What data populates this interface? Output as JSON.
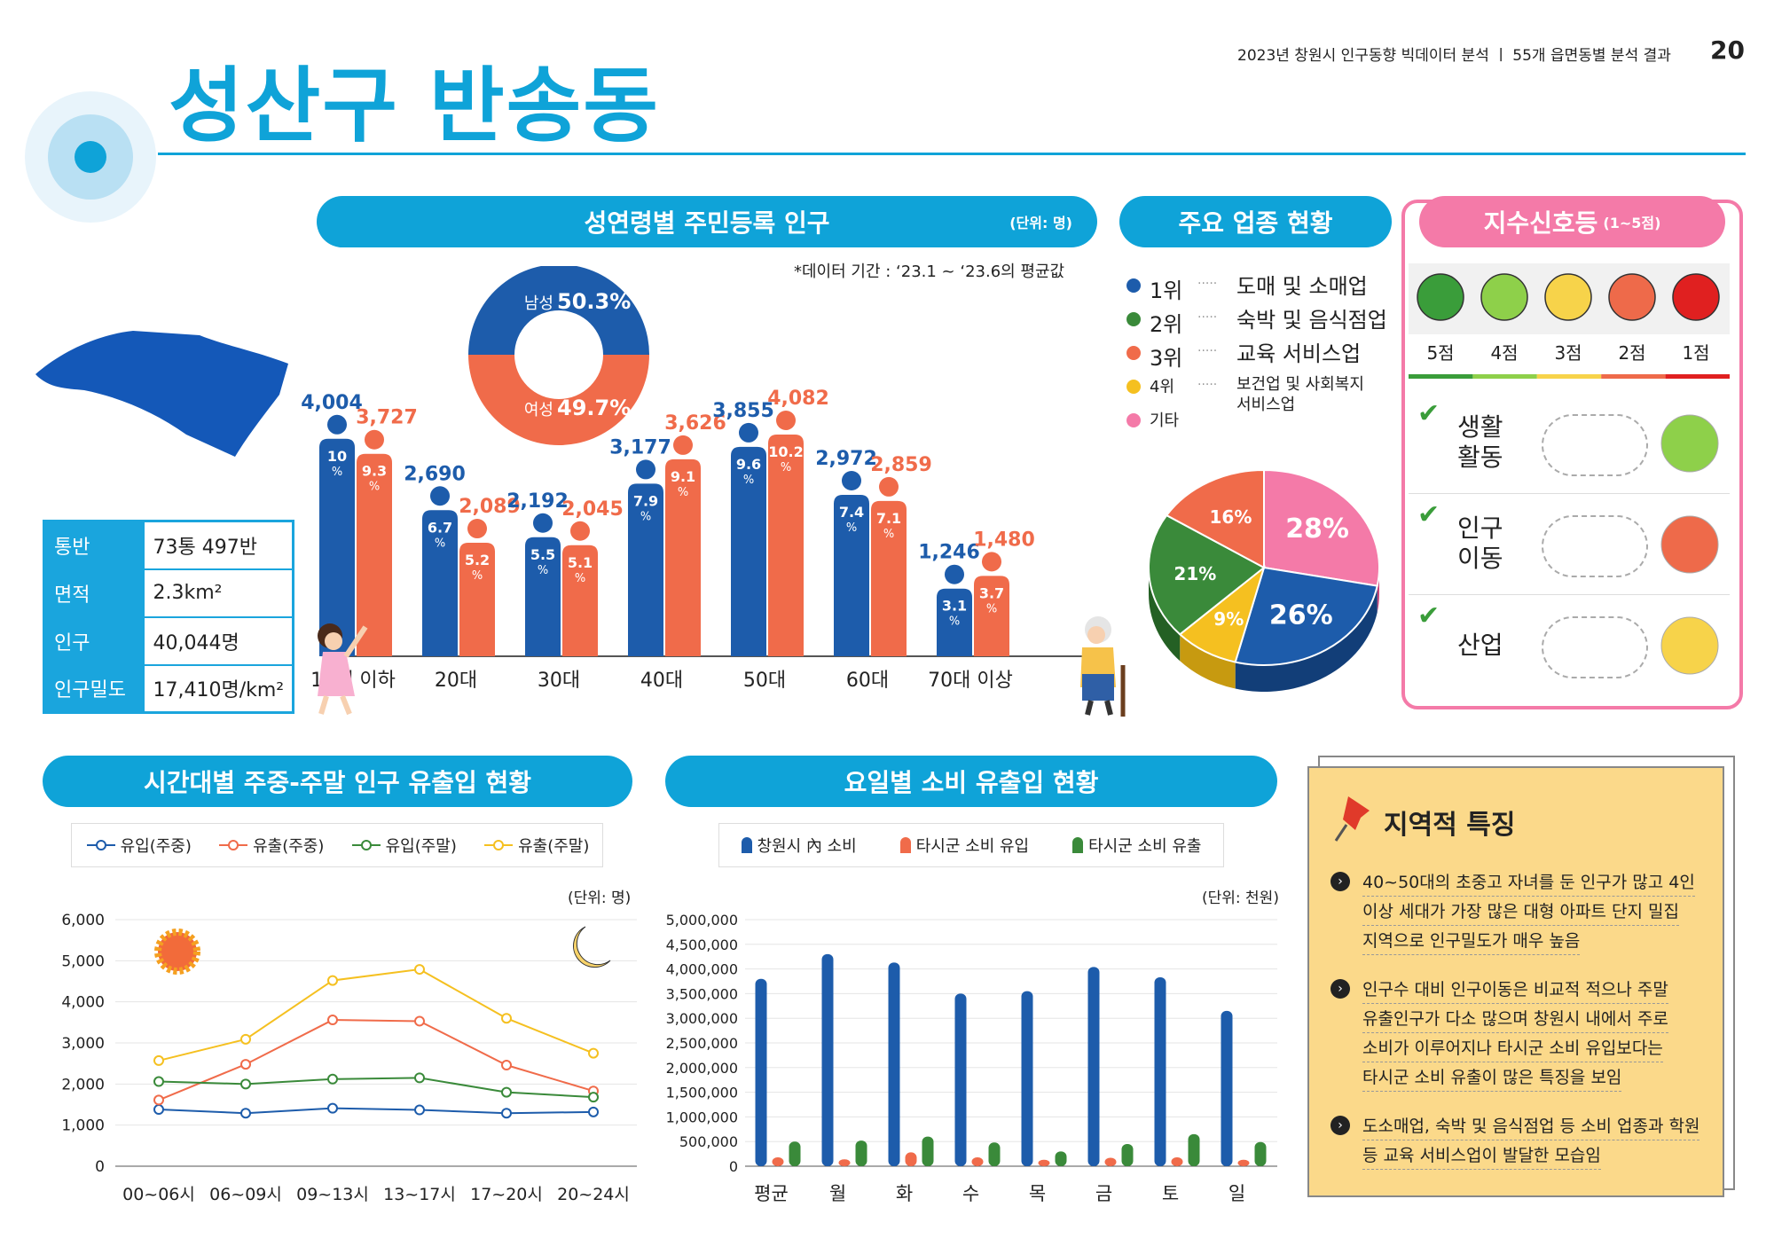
{
  "header": {
    "title": "성산구 반송동",
    "series": "2023년 창원시 인구동향 빅데이터 분석  ㅣ  55개 읍면동별 분석 결과",
    "page": "20"
  },
  "summary_table": [
    {
      "key": "통반",
      "value": "73통 497반"
    },
    {
      "key": "면적",
      "value": "2.3km²"
    },
    {
      "key": "인구",
      "value": "40,044명"
    },
    {
      "key": "인구밀도",
      "value": "17,410명/km²"
    }
  ],
  "sections": {
    "age_title": "성연령별 주민등록 인구",
    "age_unit": "(단위: 명)",
    "age_note": "*데이터 기간 : ‘23.1 ~ ‘23.6의 평균값",
    "industry_title": "주요 업종 현황",
    "signal_title": "지수신호등",
    "signal_sub": "(1~5점)",
    "time_title": "시간대별 주중-주말 인구 유출입 현황",
    "time_unit": "(단위: 명)",
    "day_title": "요일별 소비 유출입 현황",
    "day_unit": "(단위: 천원)",
    "feature_title": "지역적 특징"
  },
  "colors": {
    "accent": "#0fa3d8",
    "male": "#1d5cab",
    "female": "#f06b4a",
    "inflow_weekday": "#1d5cab",
    "outflow_weekday": "#f06b4a",
    "inflow_weekend": "#3a8a3a",
    "outflow_weekend": "#f5c020",
    "pink": "#f47aa8",
    "note_bg": "#fbd98a"
  },
  "gender": {
    "male_label": "남성",
    "male_value": "50.3",
    "female_label": "여성",
    "female_value": "49.7",
    "pct": "%"
  },
  "industry": {
    "legend": [
      {
        "rank": "1위",
        "name": "도매 및 소매업",
        "color": "#1d5cab"
      },
      {
        "rank": "2위",
        "name": "숙박 및 음식점업",
        "color": "#3a8a3a"
      },
      {
        "rank": "3위",
        "name": "교육 서비스업",
        "color": "#f06b4a"
      },
      {
        "rank": "4위",
        "name": "보건업 및 사회복지",
        "name2": "서비스업",
        "color": "#f5c020"
      },
      {
        "rank": "기타",
        "name": "",
        "color": "#f47aa8"
      }
    ],
    "dots": "·····"
  },
  "signal": {
    "scores": [
      "5점",
      "4점",
      "3점",
      "2점",
      "1점"
    ],
    "face_colors": [
      "#3a9d3a",
      "#8ed04a",
      "#f7d34a",
      "#ee6a4a",
      "#e02020"
    ],
    "rows": [
      {
        "label1": "생활",
        "label2": "활동",
        "score": 4
      },
      {
        "label1": "인구",
        "label2": "이동",
        "score": 2
      },
      {
        "label1": "산업",
        "label2": "",
        "score": 3
      }
    ]
  },
  "feature": {
    "items": [
      [
        "40~50대의 초중고 자녀를 둔 인구가 많고 4인",
        "이상 세대가 가장 많은 대형 아파트 단지 밀집",
        "지역으로 인구밀도가 매우 높음"
      ],
      [
        "인구수 대비 인구이동은 비교적 적으나 주말",
        "유출인구가 다소 많으며 창원시 내에서 주로",
        "소비가 이루어지나 타시군 소비 유입보다는",
        "타시군 소비 유출이 많은 특징을 보임"
      ],
      [
        "도소매업, 숙박 및 음식점업 등 소비 업종과 학원",
        "등 교육 서비스업이 발달한 모습임"
      ]
    ]
  },
  "chart_data": [
    {
      "type": "bar",
      "title": "성연령별 주민등록 인구",
      "categories": [
        "10대 이하",
        "20대",
        "30대",
        "40대",
        "50대",
        "60대",
        "70대 이상"
      ],
      "series": [
        {
          "name": "남성",
          "values": [
            4004,
            2690,
            2192,
            3177,
            3855,
            2972,
            1246
          ],
          "labels": [
            "4,004",
            "2,690",
            "2,192",
            "3,177",
            "3,855",
            "2,972",
            "1,246"
          ],
          "pct": [
            "10",
            "6.7",
            "5.5",
            "7.9",
            "9.6",
            "7.4",
            "3.1"
          ]
        },
        {
          "name": "여성",
          "values": [
            3727,
            2089,
            2045,
            3626,
            4082,
            2859,
            1480
          ],
          "labels": [
            "3,727",
            "2,089",
            "2,045",
            "3,626",
            "4,082",
            "2,859",
            "1,480"
          ],
          "pct": [
            "9.3",
            "5.2",
            "5.1",
            "9.1",
            "10.2",
            "7.1",
            "3.7"
          ]
        }
      ],
      "ylim": [
        0,
        4500
      ]
    },
    {
      "type": "pie",
      "title": "주요 업종 현황",
      "slices": [
        {
          "name": "기타",
          "value": 28
        },
        {
          "name": "1위",
          "value": 26
        },
        {
          "name": "4위",
          "value": 9
        },
        {
          "name": "2위",
          "value": 21
        },
        {
          "name": "3위",
          "value": 16
        }
      ]
    },
    {
      "type": "line",
      "title": "시간대별 주중-주말 인구 유출입 현황",
      "categories": [
        "00~06시",
        "06~09시",
        "09~13시",
        "13~17시",
        "17~20시",
        "20~24시"
      ],
      "series": [
        {
          "name": "유입(주중)",
          "values": [
            1380,
            1290,
            1410,
            1370,
            1290,
            1320
          ]
        },
        {
          "name": "유출(주중)",
          "values": [
            1610,
            2480,
            3560,
            3530,
            2460,
            1830
          ]
        },
        {
          "name": "유입(주말)",
          "values": [
            2060,
            2000,
            2120,
            2150,
            1800,
            1680
          ]
        },
        {
          "name": "유출(주말)",
          "values": [
            2570,
            3090,
            4520,
            4790,
            3600,
            2750
          ]
        }
      ],
      "yticks": [
        "6,000",
        "5,000",
        "4,000",
        "3,000",
        "2,000",
        "1,000",
        "0"
      ],
      "ylim": [
        0,
        6000
      ]
    },
    {
      "type": "bar",
      "title": "요일별 소비 유출입 현황",
      "categories": [
        "평균",
        "월",
        "화",
        "수",
        "목",
        "금",
        "토",
        "일"
      ],
      "series": [
        {
          "name": "창원시 內 소비",
          "values": [
            3800000,
            4300000,
            4130000,
            3500000,
            3550000,
            4040000,
            3830000,
            3150000
          ]
        },
        {
          "name": "타시군 소비 유입",
          "values": [
            180000,
            140000,
            280000,
            180000,
            130000,
            170000,
            180000,
            130000
          ]
        },
        {
          "name": "타시군 소비 유출",
          "values": [
            500000,
            520000,
            600000,
            480000,
            300000,
            450000,
            650000,
            490000
          ]
        }
      ],
      "yticks": [
        "5,000,000",
        "4,500,000",
        "4,000,000",
        "3,500,000",
        "3,000,000",
        "2,500,000",
        "2,000,000",
        "1,500,000",
        "1,000,000",
        "500,000",
        "0"
      ],
      "ylim": [
        0,
        5000000
      ]
    }
  ]
}
